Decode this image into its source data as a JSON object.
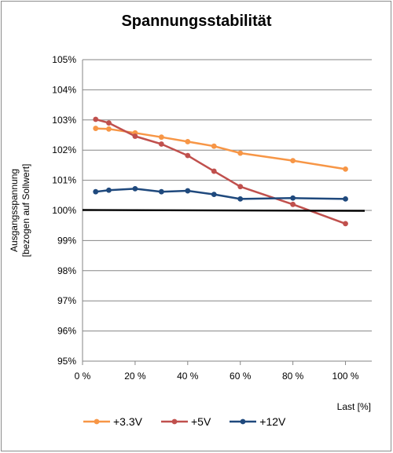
{
  "chart_data": {
    "type": "line",
    "title": "Spannungsstabilität",
    "ylabel_lines": [
      "Ausgangsspannung",
      "[bezogen auf Sollwert]"
    ],
    "xlabel": "Last [%]",
    "xlim": [
      0,
      110
    ],
    "ylim": [
      95,
      105
    ],
    "xticks": [
      {
        "value": 0,
        "label": "0 %"
      },
      {
        "value": 20,
        "label": "20 %"
      },
      {
        "value": 40,
        "label": "40 %"
      },
      {
        "value": 60,
        "label": "60 %"
      },
      {
        "value": 80,
        "label": "80 %"
      },
      {
        "value": 100,
        "label": "100 %"
      }
    ],
    "yticks": [
      {
        "value": 95,
        "label": "95%"
      },
      {
        "value": 96,
        "label": "96%"
      },
      {
        "value": 97,
        "label": "97%"
      },
      {
        "value": 98,
        "label": "98%"
      },
      {
        "value": 99,
        "label": "99%"
      },
      {
        "value": 100,
        "label": "100%"
      },
      {
        "value": 101,
        "label": "101%"
      },
      {
        "value": 102,
        "label": "102%"
      },
      {
        "value": 103,
        "label": "103%"
      },
      {
        "value": 104,
        "label": "104%"
      },
      {
        "value": 105,
        "label": "105%"
      }
    ],
    "grid": true,
    "legend_position": "bottom",
    "reference_line": {
      "value": 100,
      "color": "#000000"
    },
    "series": [
      {
        "name": "+3.3V",
        "color": "#f79646",
        "x": [
          5,
          10,
          20,
          30,
          40,
          50,
          60,
          80,
          100
        ],
        "y": [
          102.72,
          102.7,
          102.57,
          102.43,
          102.28,
          102.13,
          101.9,
          101.65,
          101.37
        ]
      },
      {
        "name": "+5V",
        "color": "#c0504d",
        "x": [
          5,
          10,
          20,
          30,
          40,
          50,
          60,
          80,
          100
        ],
        "y": [
          103.02,
          102.9,
          102.46,
          102.2,
          101.82,
          101.3,
          100.79,
          100.2,
          99.56
        ]
      },
      {
        "name": "+12V",
        "color": "#1f497d",
        "x": [
          5,
          10,
          20,
          30,
          40,
          50,
          60,
          80,
          100
        ],
        "y": [
          100.62,
          100.67,
          100.72,
          100.62,
          100.65,
          100.53,
          100.38,
          100.41,
          100.38
        ]
      }
    ]
  }
}
